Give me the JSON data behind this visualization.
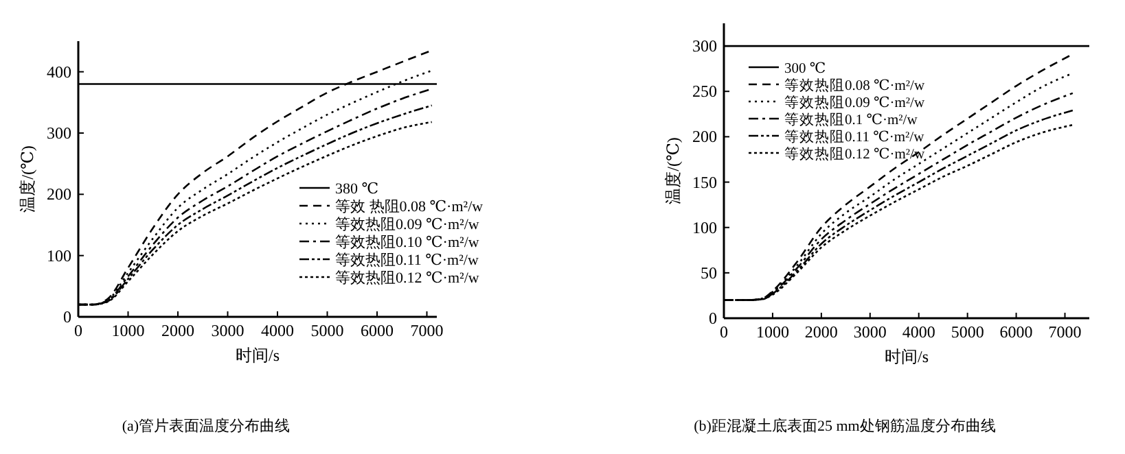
{
  "chart_data": [
    {
      "type": "line",
      "xlabel": "时间/s",
      "ylabel": "温度/(℃)",
      "annotations": [
        "(a)管片表面温度分布曲线"
      ],
      "xlim": [
        0,
        7200
      ],
      "ylim": [
        0,
        450
      ],
      "xticks": [
        0,
        1000,
        2000,
        3000,
        4000,
        5000,
        6000,
        7000
      ],
      "yticks": [
        0,
        100,
        200,
        300,
        400
      ],
      "legend": "bottom right",
      "ref_lines": [
        {
          "axis": "y",
          "value": 380,
          "label": "380 ℃",
          "color": "#000000",
          "line_style": "solid"
        }
      ],
      "x": [
        0,
        300,
        600,
        1000,
        1500,
        2000,
        2500,
        3000,
        3500,
        4000,
        4500,
        5000,
        5500,
        6000,
        6500,
        7100
      ],
      "series": [
        {
          "name": "等效 热阻0.08 ℃·m²/w",
          "color": "#000000",
          "line_style": "dashed",
          "values": [
            20,
            20,
            30,
            80,
            145,
            200,
            235,
            262,
            292,
            319,
            343,
            366,
            384,
            400,
            416,
            435
          ]
        },
        {
          "name": "等效热阻0.09 ℃·m²/w",
          "color": "#000000",
          "line_style": "dotted",
          "values": [
            20,
            20,
            28,
            72,
            128,
            178,
            208,
            233,
            260,
            285,
            308,
            330,
            349,
            367,
            384,
            402
          ]
        },
        {
          "name": "等效热阻0.10 ℃·m²/w",
          "color": "#000000",
          "line_style": "dashdot",
          "values": [
            20,
            20,
            27,
            66,
            118,
            162,
            190,
            213,
            238,
            262,
            283,
            303,
            322,
            340,
            356,
            372
          ]
        },
        {
          "name": "等效热阻0.11 ℃·m²/w",
          "color": "#000000",
          "line_style": "dashdotdot",
          "values": [
            20,
            20,
            26,
            62,
            110,
            150,
            176,
            198,
            221,
            243,
            263,
            282,
            300,
            316,
            330,
            345
          ]
        },
        {
          "name": "等效热阻0.12 ℃·m²/w",
          "color": "#000000",
          "line_style": "densedotted",
          "values": [
            20,
            20,
            25,
            58,
            102,
            140,
            165,
            185,
            206,
            226,
            245,
            263,
            280,
            295,
            308,
            318
          ]
        }
      ]
    },
    {
      "type": "line",
      "xlabel": "时间/s",
      "ylabel": "温度/(℃)",
      "annotations": [
        "(b)距混凝土底表面25 mm处钢筋温度分布曲线"
      ],
      "xlim": [
        0,
        7500
      ],
      "ylim": [
        0,
        325
      ],
      "xticks": [
        0,
        1000,
        2000,
        3000,
        4000,
        5000,
        6000,
        7000
      ],
      "yticks": [
        0,
        50,
        100,
        150,
        200,
        250,
        300
      ],
      "legend": "top left",
      "ref_lines": [
        {
          "axis": "y",
          "value": 300,
          "label": "300 ℃",
          "color": "#000000",
          "line_style": "solid"
        }
      ],
      "x": [
        0,
        500,
        800,
        1000,
        1500,
        2000,
        2500,
        3000,
        3500,
        4000,
        4500,
        5000,
        5500,
        6000,
        6500,
        7160
      ],
      "series": [
        {
          "name": "等效热阻0.08 ℃·m²/w",
          "color": "#000000",
          "line_style": "dashed",
          "values": [
            20,
            20,
            22,
            30,
            62,
            100,
            125,
            145,
            165,
            183,
            202,
            220,
            238,
            256,
            272,
            291
          ]
        },
        {
          "name": "等效热阻0.09 ℃·m²/w",
          "color": "#000000",
          "line_style": "dotted",
          "values": [
            20,
            20,
            22,
            29,
            58,
            93,
            116,
            134,
            153,
            170,
            187,
            204,
            221,
            238,
            254,
            270
          ]
        },
        {
          "name": "等效热阻0.1 ℃·m²/w",
          "color": "#000000",
          "line_style": "dashdot",
          "values": [
            20,
            20,
            21,
            28,
            55,
            87,
            108,
            126,
            143,
            159,
            175,
            191,
            206,
            221,
            234,
            248
          ]
        },
        {
          "name": "等效热阻0.11 ℃·m²/w",
          "color": "#000000",
          "line_style": "dashdotdot",
          "values": [
            20,
            20,
            21,
            27,
            52,
            82,
            102,
            119,
            135,
            150,
            165,
            179,
            193,
            207,
            218,
            229
          ]
        },
        {
          "name": "等效热阻0.12 ℃·m²/w",
          "color": "#000000",
          "line_style": "densedotted",
          "values": [
            20,
            20,
            21,
            26,
            50,
            78,
            97,
            113,
            128,
            142,
            156,
            168,
            181,
            194,
            204,
            213
          ]
        }
      ]
    }
  ]
}
